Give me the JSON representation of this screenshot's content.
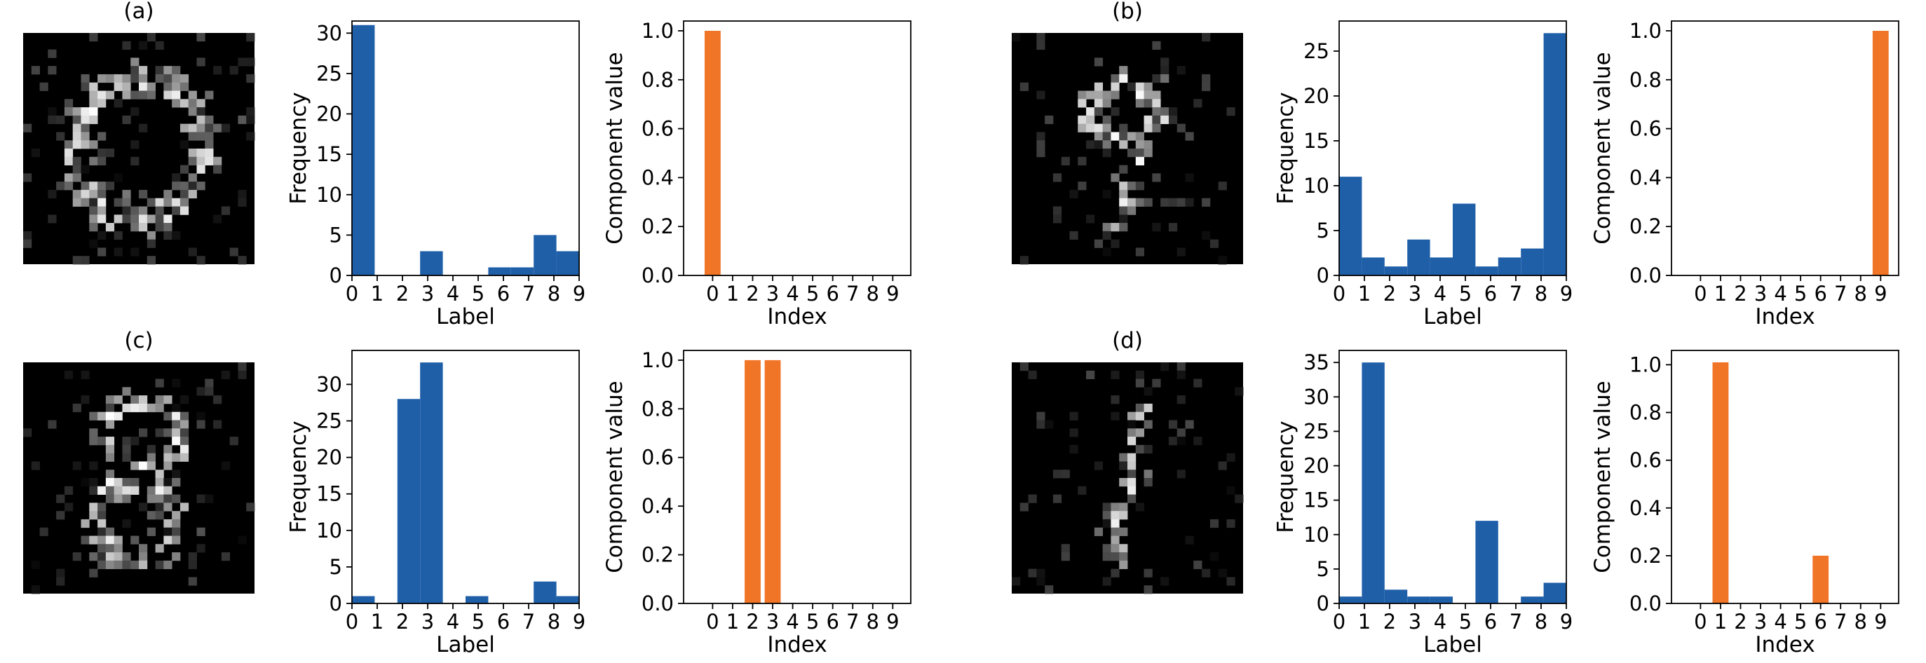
{
  "colors": {
    "hist": "#1f5fa8",
    "component": "#f07527",
    "noise_bg": "#000000",
    "axis": "#000000"
  },
  "panels": [
    {
      "id": "a",
      "title": "(a)",
      "digit": "0",
      "histogram": {
        "xlabel": "Label",
        "ylabel": "Frequency",
        "ylim": [
          0,
          31.5
        ],
        "yticks": [
          0,
          5,
          10,
          15,
          20,
          25,
          30
        ],
        "xticks": [
          "0",
          "1",
          "2",
          "3",
          "4",
          "5",
          "6",
          "7",
          "8",
          "9"
        ]
      },
      "component": {
        "xlabel": "Index",
        "ylabel": "Component value",
        "ylim": [
          0,
          1.04
        ],
        "yticks": [
          "0.0",
          "0.2",
          "0.4",
          "0.6",
          "0.8",
          "1.0"
        ],
        "xticks": [
          "0",
          "1",
          "2",
          "3",
          "4",
          "5",
          "6",
          "7",
          "8",
          "9"
        ]
      }
    },
    {
      "id": "b",
      "title": "(b)",
      "digit": "9",
      "histogram": {
        "xlabel": "Label",
        "ylabel": "Frequency",
        "ylim": [
          0,
          28.35
        ],
        "yticks": [
          0,
          5,
          10,
          15,
          20,
          25
        ],
        "xticks": [
          "0",
          "1",
          "2",
          "3",
          "4",
          "5",
          "6",
          "7",
          "8",
          "9"
        ]
      },
      "component": {
        "xlabel": "Index",
        "ylabel": "Component value",
        "ylim": [
          0,
          1.04
        ],
        "yticks": [
          "0.0",
          "0.2",
          "0.4",
          "0.6",
          "0.8",
          "1.0"
        ],
        "xticks": [
          "0",
          "1",
          "2",
          "3",
          "4",
          "5",
          "6",
          "7",
          "8",
          "9"
        ]
      }
    },
    {
      "id": "c",
      "title": "(c)",
      "digit": "8",
      "histogram": {
        "xlabel": "Label",
        "ylabel": "Frequency",
        "ylim": [
          0,
          34.65
        ],
        "yticks": [
          0,
          5,
          10,
          15,
          20,
          25,
          30
        ],
        "xticks": [
          "0",
          "1",
          "2",
          "3",
          "4",
          "5",
          "6",
          "7",
          "8",
          "9"
        ]
      },
      "component": {
        "xlabel": "Index",
        "ylabel": "Component value",
        "ylim": [
          0,
          1.04
        ],
        "yticks": [
          "0.0",
          "0.2",
          "0.4",
          "0.6",
          "0.8",
          "1.0"
        ],
        "xticks": [
          "0",
          "1",
          "2",
          "3",
          "4",
          "5",
          "6",
          "7",
          "8",
          "9"
        ]
      }
    },
    {
      "id": "d",
      "title": "(d)",
      "digit": "1",
      "histogram": {
        "xlabel": "Label",
        "ylabel": "Frequency",
        "ylim": [
          0,
          36.75
        ],
        "yticks": [
          0,
          5,
          10,
          15,
          20,
          25,
          30,
          35
        ],
        "xticks": [
          "0",
          "1",
          "2",
          "3",
          "4",
          "5",
          "6",
          "7",
          "8",
          "9"
        ]
      },
      "component": {
        "xlabel": "Index",
        "ylabel": "Component value",
        "ylim": [
          0,
          1.06
        ],
        "yticks": [
          "0.0",
          "0.2",
          "0.4",
          "0.6",
          "0.8",
          "1.0"
        ],
        "xticks": [
          "0",
          "1",
          "2",
          "3",
          "4",
          "5",
          "6",
          "7",
          "8",
          "9"
        ]
      }
    }
  ],
  "chart_data": [
    {
      "panel": "(a)",
      "type": "bar",
      "kind": "histogram",
      "xlabel": "Label",
      "ylabel": "Frequency",
      "edges": [
        0,
        0.9,
        1.8,
        2.7,
        3.6,
        4.5,
        5.4,
        6.3,
        7.2,
        8.1,
        9.0
      ],
      "values": [
        31,
        0,
        0,
        3,
        0,
        0,
        1,
        1,
        5,
        3
      ],
      "ylim": [
        0,
        31.5
      ]
    },
    {
      "panel": "(a)",
      "type": "bar",
      "kind": "component",
      "xlabel": "Index",
      "ylabel": "Component value",
      "categories": [
        0,
        1,
        2,
        3,
        4,
        5,
        6,
        7,
        8,
        9
      ],
      "values": [
        1.0,
        0,
        0,
        0,
        0,
        0,
        0,
        0,
        0,
        0
      ],
      "ylim": [
        0,
        1.04
      ]
    },
    {
      "panel": "(b)",
      "type": "bar",
      "kind": "histogram",
      "xlabel": "Label",
      "ylabel": "Frequency",
      "edges": [
        0,
        0.9,
        1.8,
        2.7,
        3.6,
        4.5,
        5.4,
        6.3,
        7.2,
        8.1,
        9.0
      ],
      "values": [
        11,
        2,
        1,
        4,
        2,
        8,
        1,
        2,
        3,
        27
      ],
      "ylim": [
        0,
        28.35
      ]
    },
    {
      "panel": "(b)",
      "type": "bar",
      "kind": "component",
      "xlabel": "Index",
      "ylabel": "Component value",
      "categories": [
        0,
        1,
        2,
        3,
        4,
        5,
        6,
        7,
        8,
        9
      ],
      "values": [
        0,
        0,
        0,
        0,
        0,
        0,
        0,
        0,
        0,
        1.0
      ],
      "ylim": [
        0,
        1.04
      ]
    },
    {
      "panel": "(c)",
      "type": "bar",
      "kind": "histogram",
      "xlabel": "Label",
      "ylabel": "Frequency",
      "edges": [
        0,
        0.9,
        1.8,
        2.7,
        3.6,
        4.5,
        5.4,
        6.3,
        7.2,
        8.1,
        9.0
      ],
      "values": [
        1,
        0,
        28,
        33,
        0,
        1,
        0,
        0,
        3,
        1
      ],
      "ylim": [
        0,
        34.65
      ]
    },
    {
      "panel": "(c)",
      "type": "bar",
      "kind": "component",
      "xlabel": "Index",
      "ylabel": "Component value",
      "categories": [
        0,
        1,
        2,
        3,
        4,
        5,
        6,
        7,
        8,
        9
      ],
      "values": [
        0,
        0,
        1.0,
        1.0,
        0,
        0,
        0,
        0,
        0,
        0
      ],
      "ylim": [
        0,
        1.04
      ]
    },
    {
      "panel": "(d)",
      "type": "bar",
      "kind": "histogram",
      "xlabel": "Label",
      "ylabel": "Frequency",
      "edges": [
        0,
        0.9,
        1.8,
        2.7,
        3.6,
        4.5,
        5.4,
        6.3,
        7.2,
        8.1,
        9.0
      ],
      "values": [
        1,
        35,
        2,
        1,
        1,
        0,
        12,
        0,
        1,
        3
      ],
      "ylim": [
        0,
        36.75
      ]
    },
    {
      "panel": "(d)",
      "type": "bar",
      "kind": "component",
      "xlabel": "Index",
      "ylabel": "Component value",
      "categories": [
        0,
        1,
        2,
        3,
        4,
        5,
        6,
        7,
        8,
        9
      ],
      "values": [
        0,
        1.01,
        0,
        0,
        0,
        0,
        0.2,
        0,
        0,
        0
      ],
      "ylim": [
        0,
        1.06
      ]
    }
  ]
}
